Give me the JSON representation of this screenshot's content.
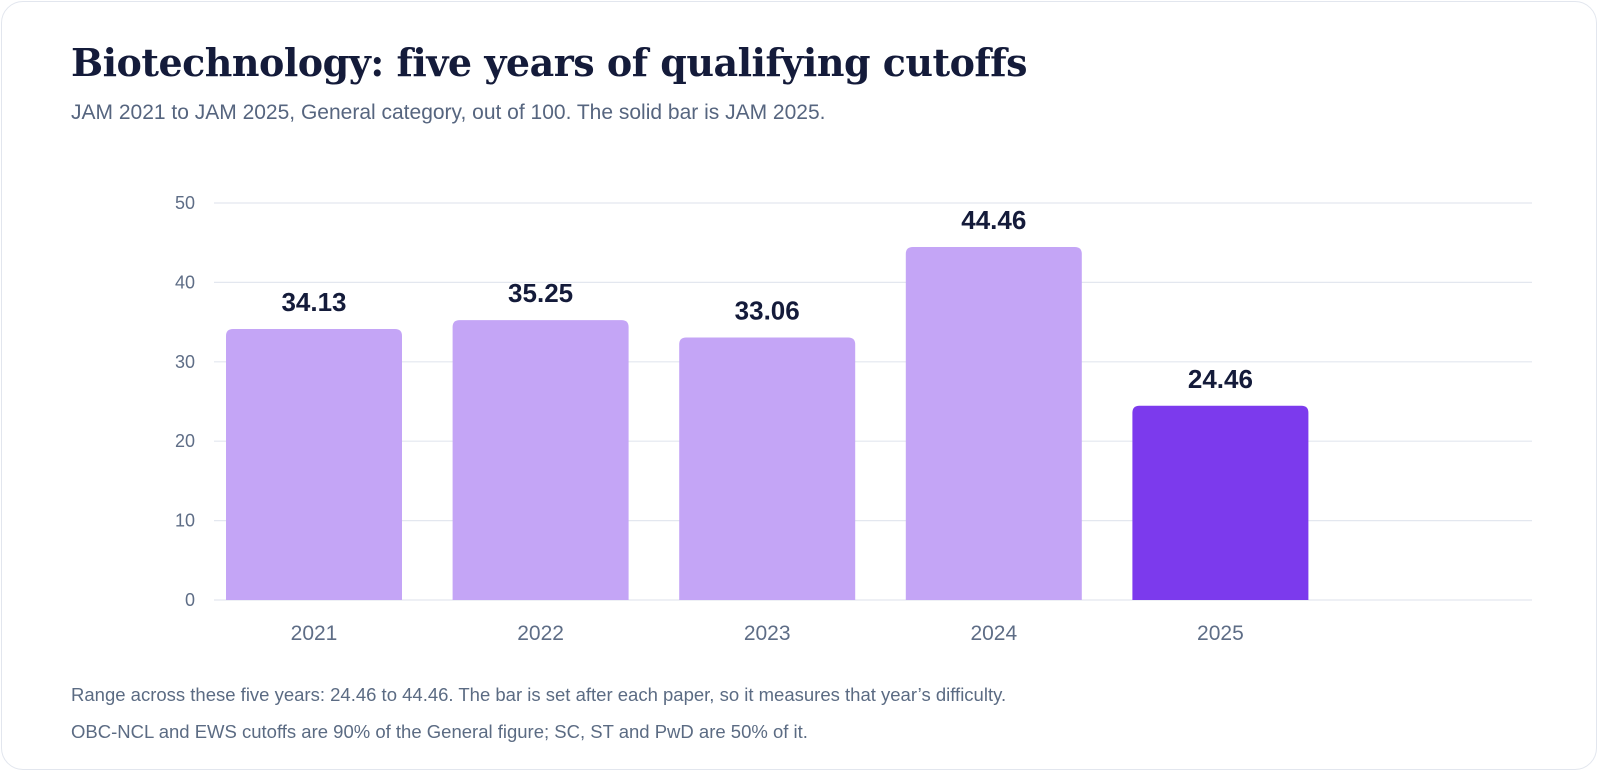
{
  "title": "Biotechnology: five years of qualifying cutoffs",
  "subtitle": "JAM 2021 to JAM 2025, General category, out of 100. The solid bar is JAM 2025.",
  "notes": {
    "range": "Range across these five years: 24.46 to 44.46. The bar is set after each paper, so it measures that year’s difficulty.",
    "categories": "OBC-NCL and EWS cutoffs are 90% of the General figure; SC, ST and PwD are 50% of it."
  },
  "colors": {
    "bar": "#c4a5f6",
    "highlight": "#7c3aed",
    "grid": "#e3e7ef",
    "tick": "#5e6d86",
    "label": "#141b3a"
  },
  "chart_data": {
    "type": "bar",
    "categories": [
      "2021",
      "2022",
      "2023",
      "2024",
      "2025"
    ],
    "values": [
      34.13,
      35.25,
      33.06,
      44.46,
      24.46
    ],
    "value_labels": [
      "34.13",
      "35.25",
      "33.06",
      "44.46",
      "24.46"
    ],
    "highlight_category": "2025",
    "ylim": [
      0,
      50
    ],
    "yticks": [
      0,
      10,
      20,
      30,
      40,
      50
    ],
    "grid": true,
    "xlabel": "",
    "ylabel": ""
  }
}
